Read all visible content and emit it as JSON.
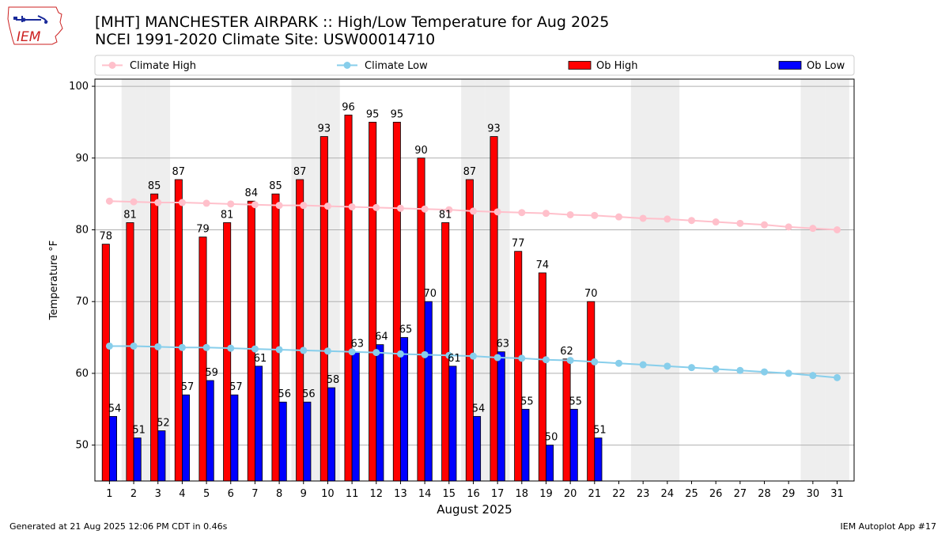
{
  "title_line1": "[MHT] MANCHESTER AIRPARK :: High/Low Temperature for Aug 2025",
  "title_line2": "NCEI 1991-2020 Climate Site: USW00014710",
  "logo_text": "IEM",
  "footer_left": "Generated at 21 Aug 2025 12:06 PM CDT in 0.46s",
  "footer_right": "IEM Autoplot App #17",
  "colors": {
    "ob_high": "#ff0000",
    "ob_low": "#0000ff",
    "climate_high": "#ffc0cb",
    "climate_low": "#87ceeb",
    "weekend_band": "#eeeeee",
    "grid": "#b0b0b0"
  },
  "chart_data": {
    "type": "bar",
    "xlabel": "August 2025",
    "ylabel": "Temperature °F",
    "ylim": [
      45,
      101
    ],
    "yticks": [
      50,
      60,
      70,
      80,
      90,
      100
    ],
    "grid": "horizontal",
    "legend_placement": "top",
    "legend": [
      "Climate High",
      "Climate Low",
      "Ob High",
      "Ob Low"
    ],
    "categories": [
      "1",
      "2",
      "3",
      "4",
      "5",
      "6",
      "7",
      "8",
      "9",
      "10",
      "11",
      "12",
      "13",
      "14",
      "15",
      "16",
      "17",
      "18",
      "19",
      "20",
      "21",
      "22",
      "23",
      "24",
      "25",
      "26",
      "27",
      "28",
      "29",
      "30",
      "31"
    ],
    "shaded_days": [
      2,
      3,
      9,
      10,
      16,
      17,
      23,
      24,
      30,
      31
    ],
    "series": [
      {
        "name": "Ob High",
        "kind": "bar",
        "values": [
          78,
          81,
          85,
          87,
          79,
          81,
          84,
          85,
          87,
          93,
          96,
          95,
          95,
          90,
          81,
          87,
          93,
          77,
          74,
          62,
          70,
          null,
          null,
          null,
          null,
          null,
          null,
          null,
          null,
          null,
          null
        ]
      },
      {
        "name": "Ob Low",
        "kind": "bar",
        "values": [
          54,
          51,
          52,
          57,
          59,
          57,
          61,
          56,
          56,
          58,
          63,
          64,
          65,
          70,
          61,
          54,
          63,
          55,
          50,
          55,
          51,
          null,
          null,
          null,
          null,
          null,
          null,
          null,
          null,
          null,
          null
        ]
      },
      {
        "name": "Climate High",
        "kind": "line",
        "values": [
          84.0,
          83.9,
          83.8,
          83.8,
          83.7,
          83.6,
          83.5,
          83.4,
          83.4,
          83.3,
          83.2,
          83.1,
          83.0,
          82.9,
          82.8,
          82.6,
          82.5,
          82.4,
          82.3,
          82.1,
          82.0,
          81.8,
          81.6,
          81.5,
          81.3,
          81.1,
          80.9,
          80.7,
          80.4,
          80.2,
          80.0
        ]
      },
      {
        "name": "Climate Low",
        "kind": "line",
        "values": [
          63.8,
          63.8,
          63.7,
          63.6,
          63.6,
          63.5,
          63.4,
          63.3,
          63.2,
          63.1,
          63.0,
          62.9,
          62.7,
          62.6,
          62.5,
          62.4,
          62.2,
          62.1,
          61.9,
          61.8,
          61.6,
          61.4,
          61.2,
          61.0,
          60.8,
          60.6,
          60.4,
          60.2,
          60.0,
          59.7,
          59.4
        ]
      }
    ]
  }
}
